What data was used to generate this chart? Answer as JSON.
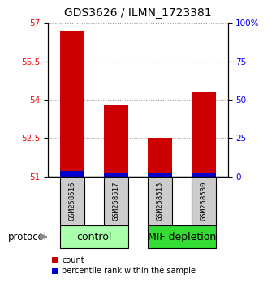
{
  "title": "GDS3626 / ILMN_1723381",
  "samples": [
    "GSM258516",
    "GSM258517",
    "GSM258515",
    "GSM258530"
  ],
  "red_values": [
    56.7,
    53.8,
    52.5,
    54.3
  ],
  "blue_values": [
    51.22,
    51.15,
    51.12,
    51.12
  ],
  "baseline": 51.0,
  "ylim": [
    51.0,
    57.0
  ],
  "yticks_left": [
    51,
    52.5,
    54,
    55.5,
    57
  ],
  "yticks_right": [
    0,
    25,
    50,
    75,
    100
  ],
  "bar_width": 0.55,
  "red_color": "#cc0000",
  "blue_color": "#0000cc",
  "legend_red": "count",
  "legend_blue": "percentile rank within the sample",
  "protocol_label": "protocol",
  "title_fontsize": 10,
  "tick_fontsize": 7.5,
  "grid_color": "#999999",
  "sample_box_color": "#cccccc",
  "control_color": "#aaffaa",
  "mif_color": "#33dd33",
  "figure_bg": "#ffffff",
  "group_ranges": [
    [
      0,
      1,
      "control"
    ],
    [
      2,
      3,
      "MIF depletion"
    ]
  ]
}
